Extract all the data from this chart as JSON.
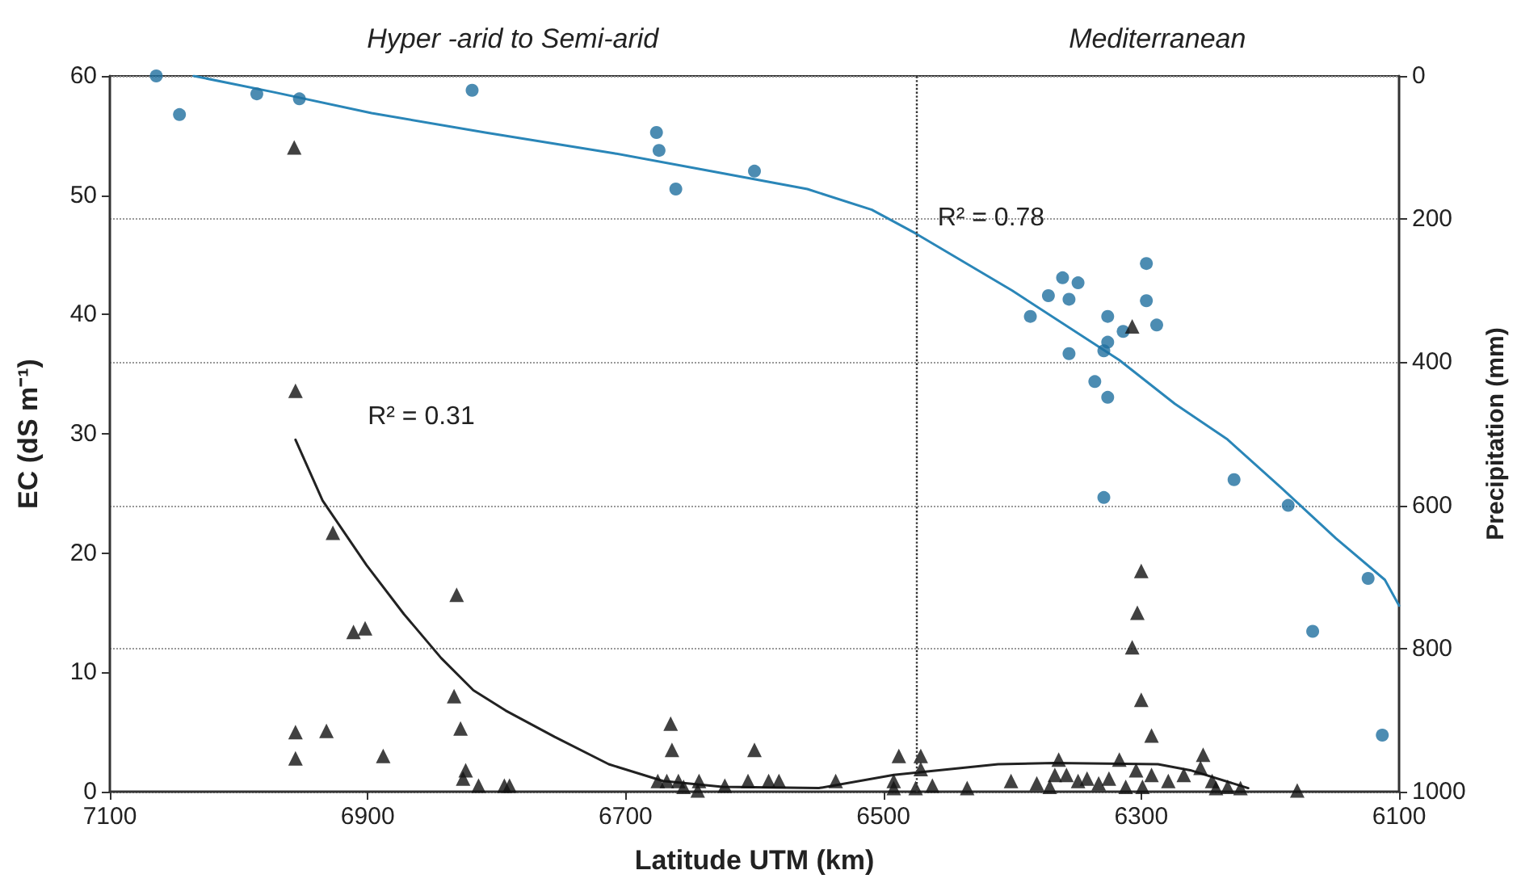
{
  "chart_data": {
    "type": "scatter",
    "xlabel": "Latitude UTM (km)",
    "ylabel": "EC (dS m⁻¹)",
    "y2label": "Precipitation (mm)",
    "xlim": [
      7100,
      6100
    ],
    "xticks": [
      7100,
      6900,
      6700,
      6500,
      6300,
      6100
    ],
    "ylim": [
      0,
      60
    ],
    "yticks": [
      0,
      10,
      20,
      30,
      40,
      50,
      60
    ],
    "y2lim": [
      1000,
      0
    ],
    "y2ticks": [
      0,
      200,
      400,
      600,
      800,
      1000
    ],
    "grid": "y",
    "series": [
      {
        "axis": "y2",
        "marker": "circle",
        "color": "#1f6f9f",
        "x": [
          7064,
          7046,
          6986,
          6953,
          6819,
          6676,
          6674,
          6661,
          6600,
          6386,
          6372,
          6361,
          6349,
          6356,
          6326,
          6296,
          6296,
          6288,
          6314,
          6326,
          6329,
          6356,
          6336,
          6326,
          6329,
          6228,
          6186,
          6124,
          6167,
          6113
        ],
        "values": [
          0,
          54,
          25,
          32,
          20,
          79,
          104,
          158,
          133,
          336,
          307,
          282,
          289,
          312,
          336,
          262,
          314,
          348,
          357,
          372,
          384,
          388,
          427,
          449,
          589,
          564,
          600,
          702,
          776,
          921
        ]
      },
      {
        "axis": "y",
        "marker": "triangle",
        "color": "#111111",
        "x": [
          6957,
          6956,
          6927,
          6911,
          6902,
          6831,
          6833,
          6828,
          6956,
          6956,
          6932,
          6888,
          6824,
          6826,
          6814,
          6794,
          6790,
          6665,
          6664,
          6675,
          6668,
          6659,
          6655,
          6643,
          6644,
          6623,
          6605,
          6600,
          6589,
          6581,
          6537,
          6488,
          6492,
          6492,
          6471,
          6471,
          6475,
          6462,
          6435,
          6300,
          6303,
          6307,
          6300,
          6292,
          6307,
          6401,
          6381,
          6364,
          6367,
          6358,
          6349,
          6342,
          6333,
          6325,
          6317,
          6312,
          6304,
          6292,
          6279,
          6267,
          6252,
          6254,
          6245,
          6233,
          6223,
          6179,
          6371,
          6299,
          6242
        ],
        "values": [
          54.0,
          33.6,
          21.7,
          13.4,
          13.7,
          16.5,
          8.0,
          5.3,
          5.0,
          2.8,
          5.1,
          3.0,
          1.8,
          1.1,
          0.5,
          0.5,
          0.5,
          5.7,
          3.5,
          0.9,
          0.9,
          0.9,
          0.4,
          0.9,
          0.1,
          0.5,
          0.9,
          3.5,
          0.9,
          0.9,
          0.9,
          3.0,
          0.9,
          0.3,
          3.0,
          1.9,
          0.3,
          0.5,
          0.3,
          18.5,
          15.0,
          12.1,
          7.7,
          4.7,
          39.0,
          0.9,
          0.7,
          2.7,
          1.4,
          1.4,
          0.9,
          1.1,
          0.7,
          1.1,
          2.7,
          0.4,
          1.8,
          1.4,
          0.9,
          1.4,
          3.1,
          2.0,
          0.9,
          0.4,
          0.3,
          0.1,
          0.4,
          0.4,
          0.3
        ]
      },
      {
        "type": "line",
        "axis": "y2",
        "marker": "none",
        "color": "#2a86b8",
        "x": [
          7035,
          6972,
          6897,
          6809,
          6709,
          6634,
          6559,
          6509,
          6475,
          6400,
          6317,
          6274,
          6233,
          6191,
          6149,
          6111,
          6100
        ],
        "values": [
          0,
          23,
          52,
          79,
          108,
          133,
          158,
          187,
          220,
          300,
          397,
          458,
          508,
          576,
          646,
          704,
          740
        ]
      },
      {
        "type": "line",
        "axis": "y",
        "marker": "none",
        "color": "#222222",
        "x": [
          6956,
          6935,
          6901,
          6872,
          6843,
          6818,
          6793,
          6755,
          6713,
          6671,
          6625,
          6550,
          6492,
          6411,
          6367,
          6287,
          6262,
          6217
        ],
        "values": [
          29.5,
          24.4,
          19.0,
          14.9,
          11.2,
          8.5,
          6.8,
          4.6,
          2.3,
          0.9,
          0.4,
          0.3,
          1.4,
          2.3,
          2.4,
          2.3,
          1.8,
          0.3
        ]
      }
    ],
    "ref_lines": [
      {
        "axis": "x",
        "value": 6475,
        "line_style": "dotted",
        "color": "#333333"
      }
    ],
    "annotations": [
      "Hyper -arid to Semi-arid",
      "Mediterranean",
      "R² = 0.78",
      "R² = 0.31"
    ]
  }
}
